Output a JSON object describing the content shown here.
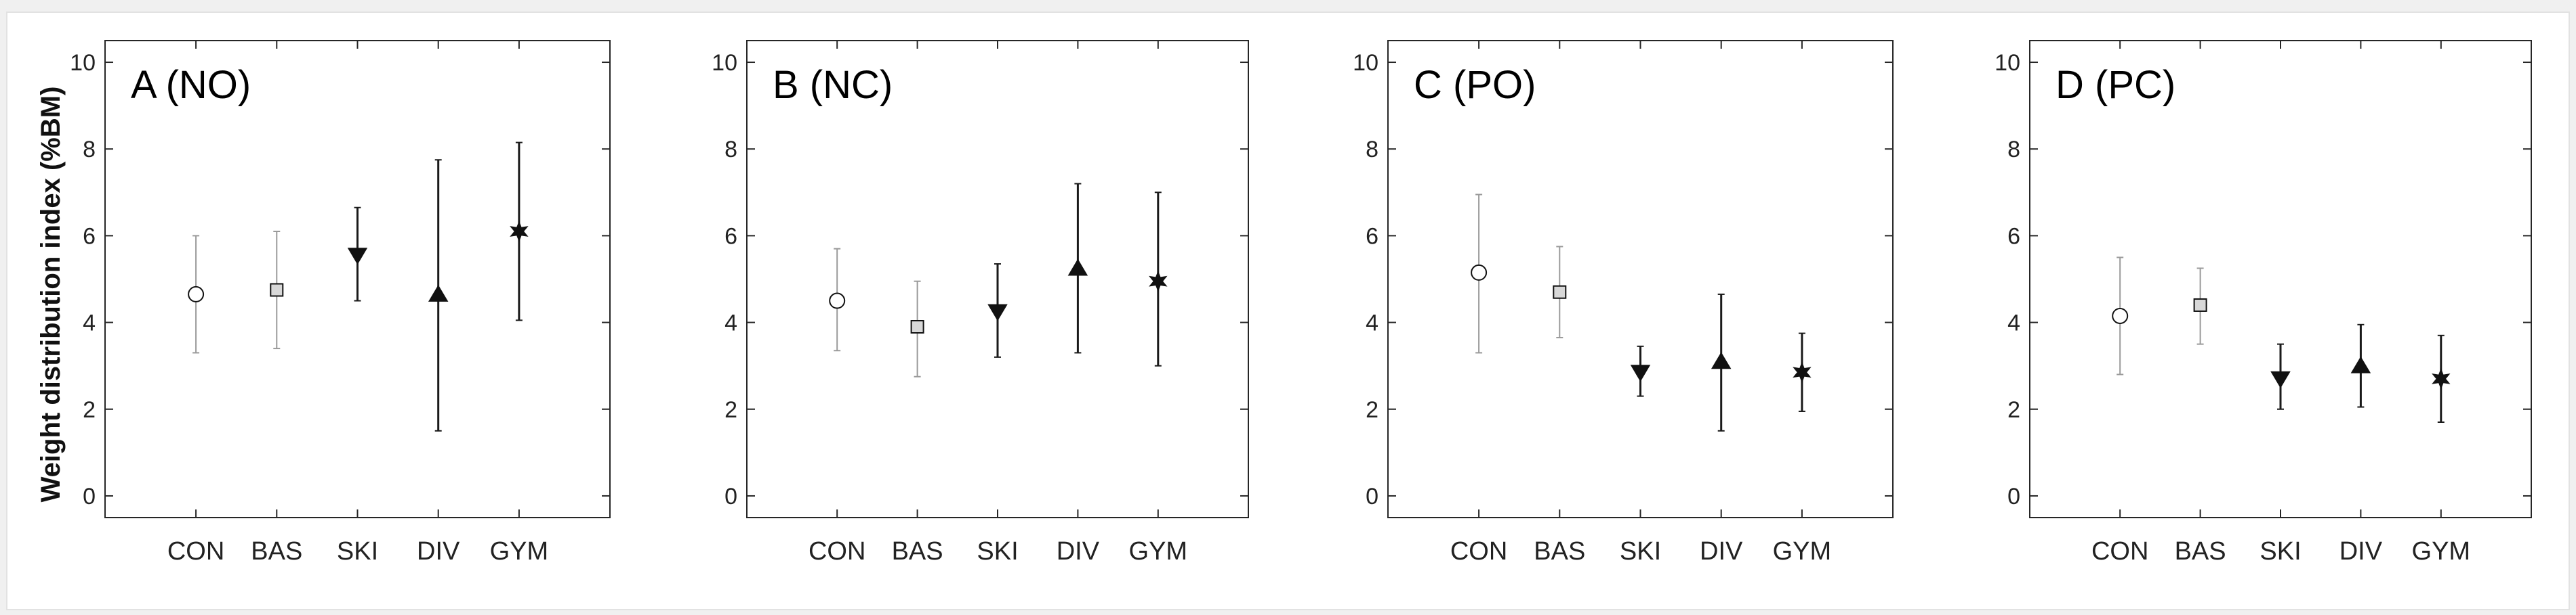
{
  "figure": {
    "ylabel": "Weight distribution index (%BM)"
  },
  "chart_data": [
    {
      "type": "scatter",
      "title": "A (NO)",
      "xlabel": "",
      "ylabel": "Weight distribution index (%BM)",
      "ylim": [
        -0.5,
        10.5
      ],
      "yticks": [
        "0",
        "2",
        "4",
        "6",
        "8",
        "10"
      ],
      "categories": [
        "CON",
        "BAS",
        "SKI",
        "DIV",
        "GYM"
      ],
      "markers": [
        "circle",
        "square",
        "triangle-down",
        "triangle-up",
        "star"
      ],
      "values": [
        4.65,
        4.75,
        5.55,
        4.65,
        6.1
      ],
      "lower": [
        3.3,
        3.4,
        4.5,
        1.5,
        4.05
      ],
      "upper": [
        6.0,
        6.1,
        6.65,
        7.75,
        8.15
      ]
    },
    {
      "type": "scatter",
      "title": "B (NC)",
      "xlabel": "",
      "ylabel": "",
      "ylim": [
        -0.5,
        10.5
      ],
      "yticks": [
        "0",
        "2",
        "4",
        "6",
        "8",
        "10"
      ],
      "categories": [
        "CON",
        "BAS",
        "SKI",
        "DIV",
        "GYM"
      ],
      "markers": [
        "circle",
        "square",
        "triangle-down",
        "triangle-up",
        "star"
      ],
      "values": [
        4.5,
        3.9,
        4.25,
        5.25,
        4.95
      ],
      "lower": [
        3.35,
        2.75,
        3.2,
        3.3,
        3.0
      ],
      "upper": [
        5.7,
        4.95,
        5.35,
        7.2,
        7.0
      ]
    },
    {
      "type": "scatter",
      "title": "C (PO)",
      "xlabel": "",
      "ylabel": "",
      "ylim": [
        -0.5,
        10.5
      ],
      "yticks": [
        "0",
        "2",
        "4",
        "6",
        "8",
        "10"
      ],
      "categories": [
        "CON",
        "BAS",
        "SKI",
        "DIV",
        "GYM"
      ],
      "markers": [
        "circle",
        "square",
        "triangle-down",
        "triangle-up",
        "star"
      ],
      "values": [
        5.15,
        4.7,
        2.85,
        3.1,
        2.85
      ],
      "lower": [
        3.3,
        3.65,
        2.3,
        1.5,
        1.95
      ],
      "upper": [
        6.95,
        5.75,
        3.45,
        4.65,
        3.75
      ]
    },
    {
      "type": "scatter",
      "title": "D (PC)",
      "xlabel": "",
      "ylabel": "",
      "ylim": [
        -0.5,
        10.5
      ],
      "yticks": [
        "0",
        "2",
        "4",
        "6",
        "8",
        "10"
      ],
      "categories": [
        "CON",
        "BAS",
        "SKI",
        "DIV",
        "GYM"
      ],
      "markers": [
        "circle",
        "square",
        "triangle-down",
        "triangle-up",
        "star"
      ],
      "values": [
        4.15,
        4.4,
        2.7,
        3.0,
        2.7
      ],
      "lower": [
        2.8,
        3.5,
        2.0,
        2.05,
        1.7
      ],
      "upper": [
        5.5,
        5.25,
        3.5,
        3.95,
        3.7
      ]
    }
  ]
}
